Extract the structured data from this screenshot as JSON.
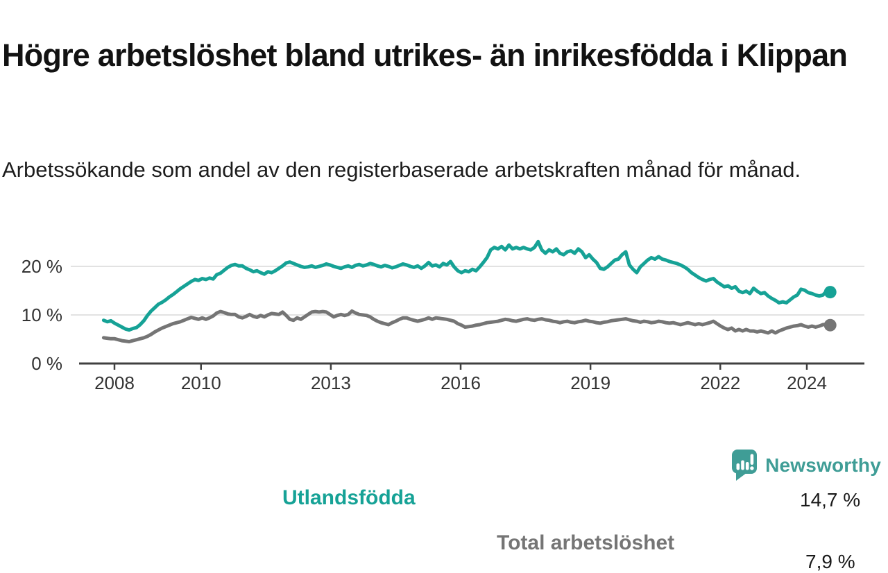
{
  "header": {
    "title": "Högre arbetslöshet bland utrikes- än inrikesfödda i Klippan",
    "subtitle": "Arbetssökande som andel av den registerbaserade arbetskraften månad för månad."
  },
  "footer": {
    "brand": "Newsworthy",
    "brand_color": "#3F9D96"
  },
  "colors": {
    "axis": "#404040",
    "gridline": "#d8d8d8",
    "tick_text": "#333333",
    "value_label_text": "#1a1a1a"
  },
  "chart_data": {
    "type": "line",
    "title": "Högre arbetslöshet bland utrikes- än inrikesfödda i Klippan",
    "subtitle": "Arbetssökande som andel av den registerbaserade arbetskraften månad för månad.",
    "unit": "%",
    "frequency": "monthly",
    "grid": true,
    "legend_position": "inline-labels",
    "ylim": [
      0,
      27.5
    ],
    "x_range_years": [
      2007.75,
      2024.54
    ],
    "x_ticks": [
      2008,
      2010,
      2013,
      2016,
      2019,
      2022,
      2024
    ],
    "y_ticks": [
      {
        "value": 0,
        "label": "0 %"
      },
      {
        "value": 10,
        "label": "10 %"
      },
      {
        "value": 20,
        "label": "20 %"
      }
    ],
    "gridline_values": [
      10,
      20
    ],
    "series": [
      {
        "name": "Utlandsfödda",
        "color": "#16A296",
        "end_label": "14,7 %",
        "end_value": 14.7,
        "values": [
          8.9,
          8.6,
          8.8,
          8.3,
          7.9,
          7.5,
          7.1,
          6.9,
          7.2,
          7.4,
          8.0,
          8.8,
          9.9,
          10.8,
          11.5,
          12.2,
          12.6,
          13.1,
          13.7,
          14.2,
          14.8,
          15.4,
          15.9,
          16.4,
          16.9,
          17.3,
          17.1,
          17.5,
          17.3,
          17.6,
          17.4,
          18.3,
          18.6,
          19.2,
          19.8,
          20.2,
          20.4,
          20.1,
          20.1,
          19.6,
          19.3,
          18.9,
          19.1,
          18.7,
          18.4,
          18.9,
          18.7,
          19.1,
          19.6,
          20.1,
          20.7,
          20.9,
          20.6,
          20.3,
          20.0,
          19.8,
          19.9,
          20.1,
          19.8,
          20.0,
          20.2,
          20.5,
          20.3,
          20.0,
          19.8,
          19.6,
          19.9,
          20.1,
          19.8,
          20.2,
          20.4,
          20.1,
          20.3,
          20.6,
          20.4,
          20.1,
          19.9,
          20.2,
          20.0,
          19.7,
          19.9,
          20.2,
          20.5,
          20.3,
          20.0,
          19.8,
          20.1,
          19.6,
          20.1,
          20.8,
          20.1,
          20.3,
          19.9,
          20.6,
          20.3,
          21.0,
          19.9,
          19.1,
          18.7,
          19.1,
          18.9,
          19.4,
          19.1,
          19.9,
          20.8,
          21.8,
          23.4,
          23.9,
          23.6,
          24.1,
          23.4,
          24.4,
          23.6,
          23.9,
          23.6,
          23.9,
          23.6,
          23.4,
          23.9,
          25.1,
          23.4,
          22.7,
          23.4,
          23.0,
          23.6,
          22.7,
          22.4,
          23.0,
          23.2,
          22.7,
          23.6,
          23.0,
          21.8,
          22.4,
          21.5,
          20.8,
          19.6,
          19.4,
          19.9,
          20.6,
          21.3,
          21.5,
          22.4,
          23.0,
          20.3,
          19.4,
          18.7,
          19.9,
          20.6,
          21.3,
          21.8,
          21.5,
          22.0,
          21.5,
          21.3,
          21.0,
          20.8,
          20.6,
          20.3,
          19.9,
          19.4,
          18.7,
          18.2,
          17.7,
          17.3,
          17.0,
          17.3,
          17.5,
          16.8,
          16.3,
          15.8,
          16.0,
          15.5,
          15.8,
          14.9,
          14.6,
          14.9,
          14.4,
          15.5,
          14.9,
          14.4,
          14.6,
          13.9,
          13.4,
          13.0,
          12.5,
          12.7,
          12.5,
          13.1,
          13.7,
          14.1,
          15.3,
          15.1,
          14.6,
          14.4,
          14.1,
          13.9,
          14.1,
          14.9,
          14.7
        ]
      },
      {
        "name": "Total arbetslöshet",
        "color": "#757575",
        "end_label": "7,9 %",
        "end_value": 7.9,
        "values": [
          5.3,
          5.2,
          5.1,
          5.1,
          4.9,
          4.7,
          4.6,
          4.5,
          4.7,
          4.9,
          5.1,
          5.3,
          5.6,
          6.0,
          6.5,
          6.9,
          7.3,
          7.6,
          7.9,
          8.2,
          8.4,
          8.6,
          8.9,
          9.2,
          9.5,
          9.3,
          9.1,
          9.4,
          9.1,
          9.4,
          9.8,
          10.4,
          10.7,
          10.5,
          10.2,
          10.1,
          10.1,
          9.6,
          9.4,
          9.7,
          10.1,
          9.7,
          9.5,
          9.9,
          9.6,
          10.0,
          10.3,
          10.2,
          10.1,
          10.6,
          9.9,
          9.1,
          8.9,
          9.4,
          9.1,
          9.6,
          10.1,
          10.6,
          10.7,
          10.6,
          10.7,
          10.6,
          10.1,
          9.6,
          9.9,
          10.1,
          9.9,
          10.1,
          10.8,
          10.4,
          10.1,
          10.0,
          9.9,
          9.6,
          9.1,
          8.7,
          8.4,
          8.2,
          8.0,
          8.4,
          8.7,
          9.1,
          9.4,
          9.4,
          9.1,
          8.9,
          8.7,
          8.9,
          9.1,
          9.4,
          9.1,
          9.4,
          9.3,
          9.2,
          9.1,
          8.9,
          8.7,
          8.2,
          7.9,
          7.5,
          7.6,
          7.7,
          7.9,
          8.0,
          8.2,
          8.4,
          8.5,
          8.6,
          8.7,
          8.9,
          9.1,
          9.0,
          8.8,
          8.7,
          8.9,
          9.1,
          9.2,
          9.0,
          8.9,
          9.1,
          9.2,
          9.0,
          8.9,
          8.7,
          8.6,
          8.4,
          8.6,
          8.7,
          8.5,
          8.4,
          8.6,
          8.7,
          8.9,
          8.7,
          8.6,
          8.4,
          8.3,
          8.5,
          8.6,
          8.8,
          8.9,
          9.0,
          9.1,
          9.2,
          9.0,
          8.8,
          8.7,
          8.5,
          8.7,
          8.6,
          8.4,
          8.5,
          8.7,
          8.6,
          8.4,
          8.3,
          8.4,
          8.2,
          8.0,
          8.2,
          8.4,
          8.2,
          8.0,
          8.2,
          8.0,
          8.2,
          8.4,
          8.7,
          8.2,
          7.7,
          7.3,
          7.0,
          7.3,
          6.7,
          7.0,
          6.7,
          7.0,
          6.7,
          6.7,
          6.5,
          6.7,
          6.5,
          6.3,
          6.7,
          6.3,
          6.7,
          7.0,
          7.3,
          7.5,
          7.7,
          7.8,
          8.0,
          7.7,
          7.5,
          7.7,
          7.5,
          7.7,
          8.0,
          8.1,
          7.9
        ]
      }
    ]
  }
}
